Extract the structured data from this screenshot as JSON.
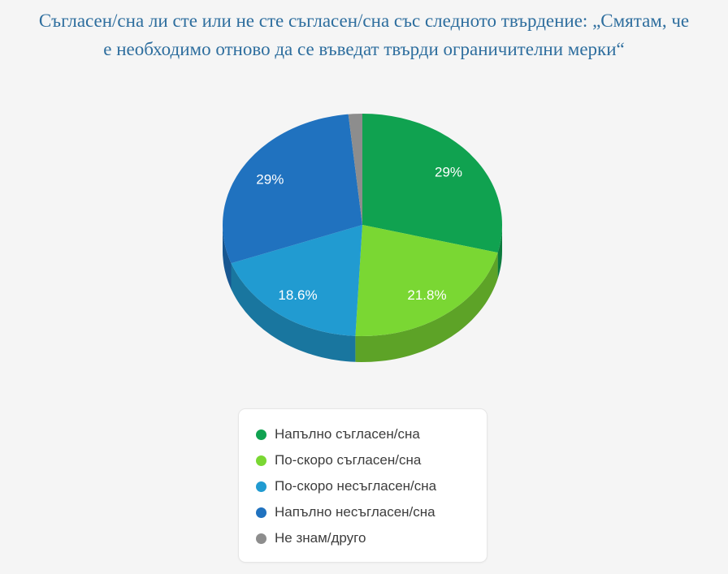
{
  "page": {
    "background_color": "#f5f5f5",
    "title_color": "#2e6e9e"
  },
  "chart_data": {
    "type": "pie",
    "effect": "3d",
    "title": "Съгласен/сна ли сте или не сте съгласен/сна със следното твърдение: „Смятам, че е необходимо отново да се въведат твърди ограничителни мерки“",
    "labels": [
      "Напълно съгласен/сна",
      "По-скоро съгласен/сна",
      "По-скоро несъгласен/сна",
      "Напълно несъгласен/сна",
      "Не знам/друго"
    ],
    "values": [
      29,
      21.8,
      18.6,
      29,
      1.6
    ],
    "display_labels": [
      "29%",
      "21.8%",
      "18.6%",
      "29%",
      ""
    ],
    "colors": [
      "#10a250",
      "#7ad733",
      "#219bd1",
      "#2072bf",
      "#8d8d8d"
    ],
    "label_text_color": "#ffffff",
    "legend_position": "bottom",
    "start_angle_deg": 0,
    "direction": "clockwise"
  }
}
